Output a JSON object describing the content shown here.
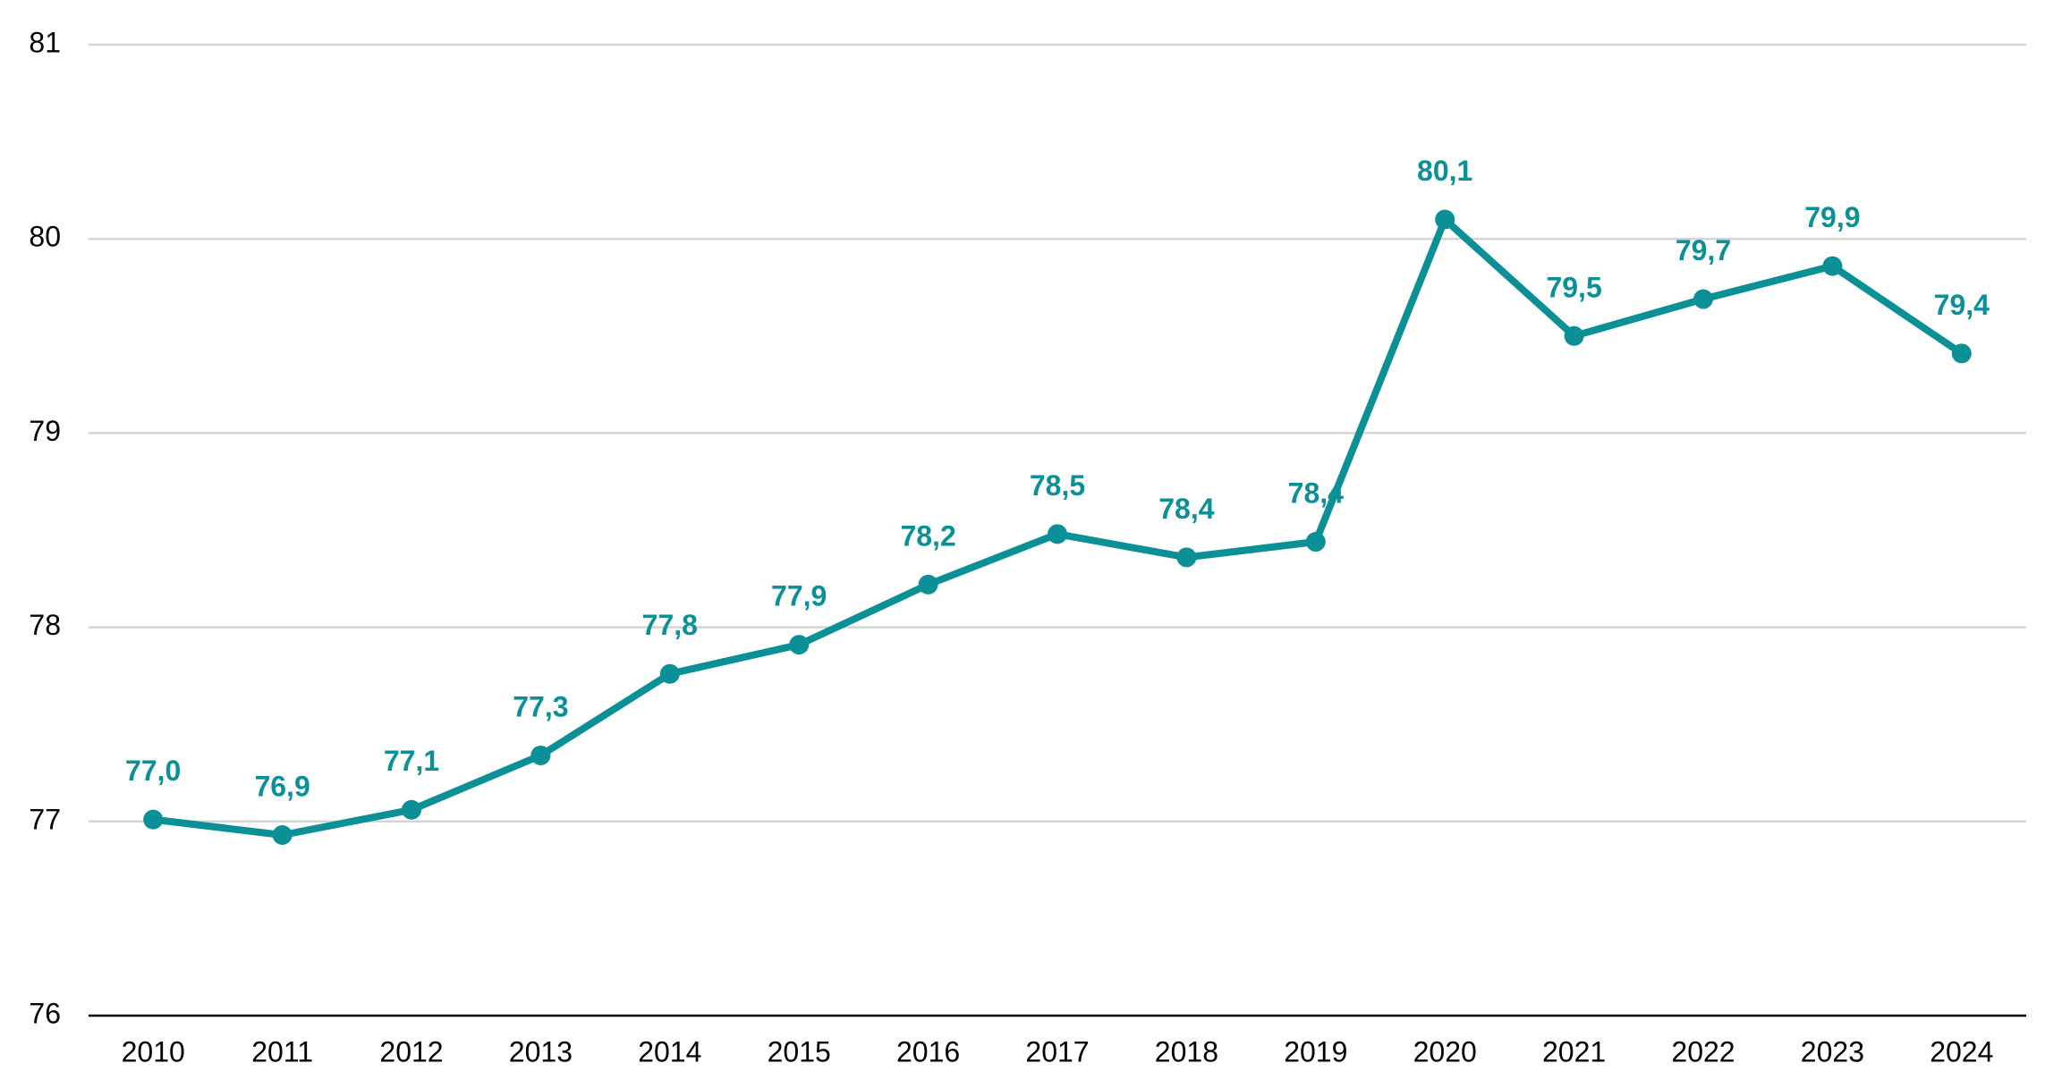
{
  "chart_data": {
    "type": "line",
    "categories": [
      "2010",
      "2011",
      "2012",
      "2013",
      "2014",
      "2015",
      "2016",
      "2017",
      "2018",
      "2019",
      "2020",
      "2021",
      "2022",
      "2023",
      "2024"
    ],
    "series": [
      {
        "color": "#0a9096",
        "values": [
          77.01,
          76.93,
          77.06,
          77.34,
          77.76,
          77.91,
          78.22,
          78.48,
          78.36,
          78.44,
          80.1,
          79.5,
          79.69,
          79.86,
          79.41
        ],
        "value_labels": [
          "77,0",
          "76,9",
          "77,1",
          "77,3",
          "77,8",
          "77,9",
          "78,2",
          "78,5",
          "78,4",
          "78,4",
          "80,1",
          "79,5",
          "79,7",
          "79,9",
          "79,4"
        ]
      }
    ],
    "ylim": [
      76,
      81
    ],
    "yticks": [
      76,
      77,
      78,
      79,
      80,
      81
    ],
    "grid": true
  }
}
